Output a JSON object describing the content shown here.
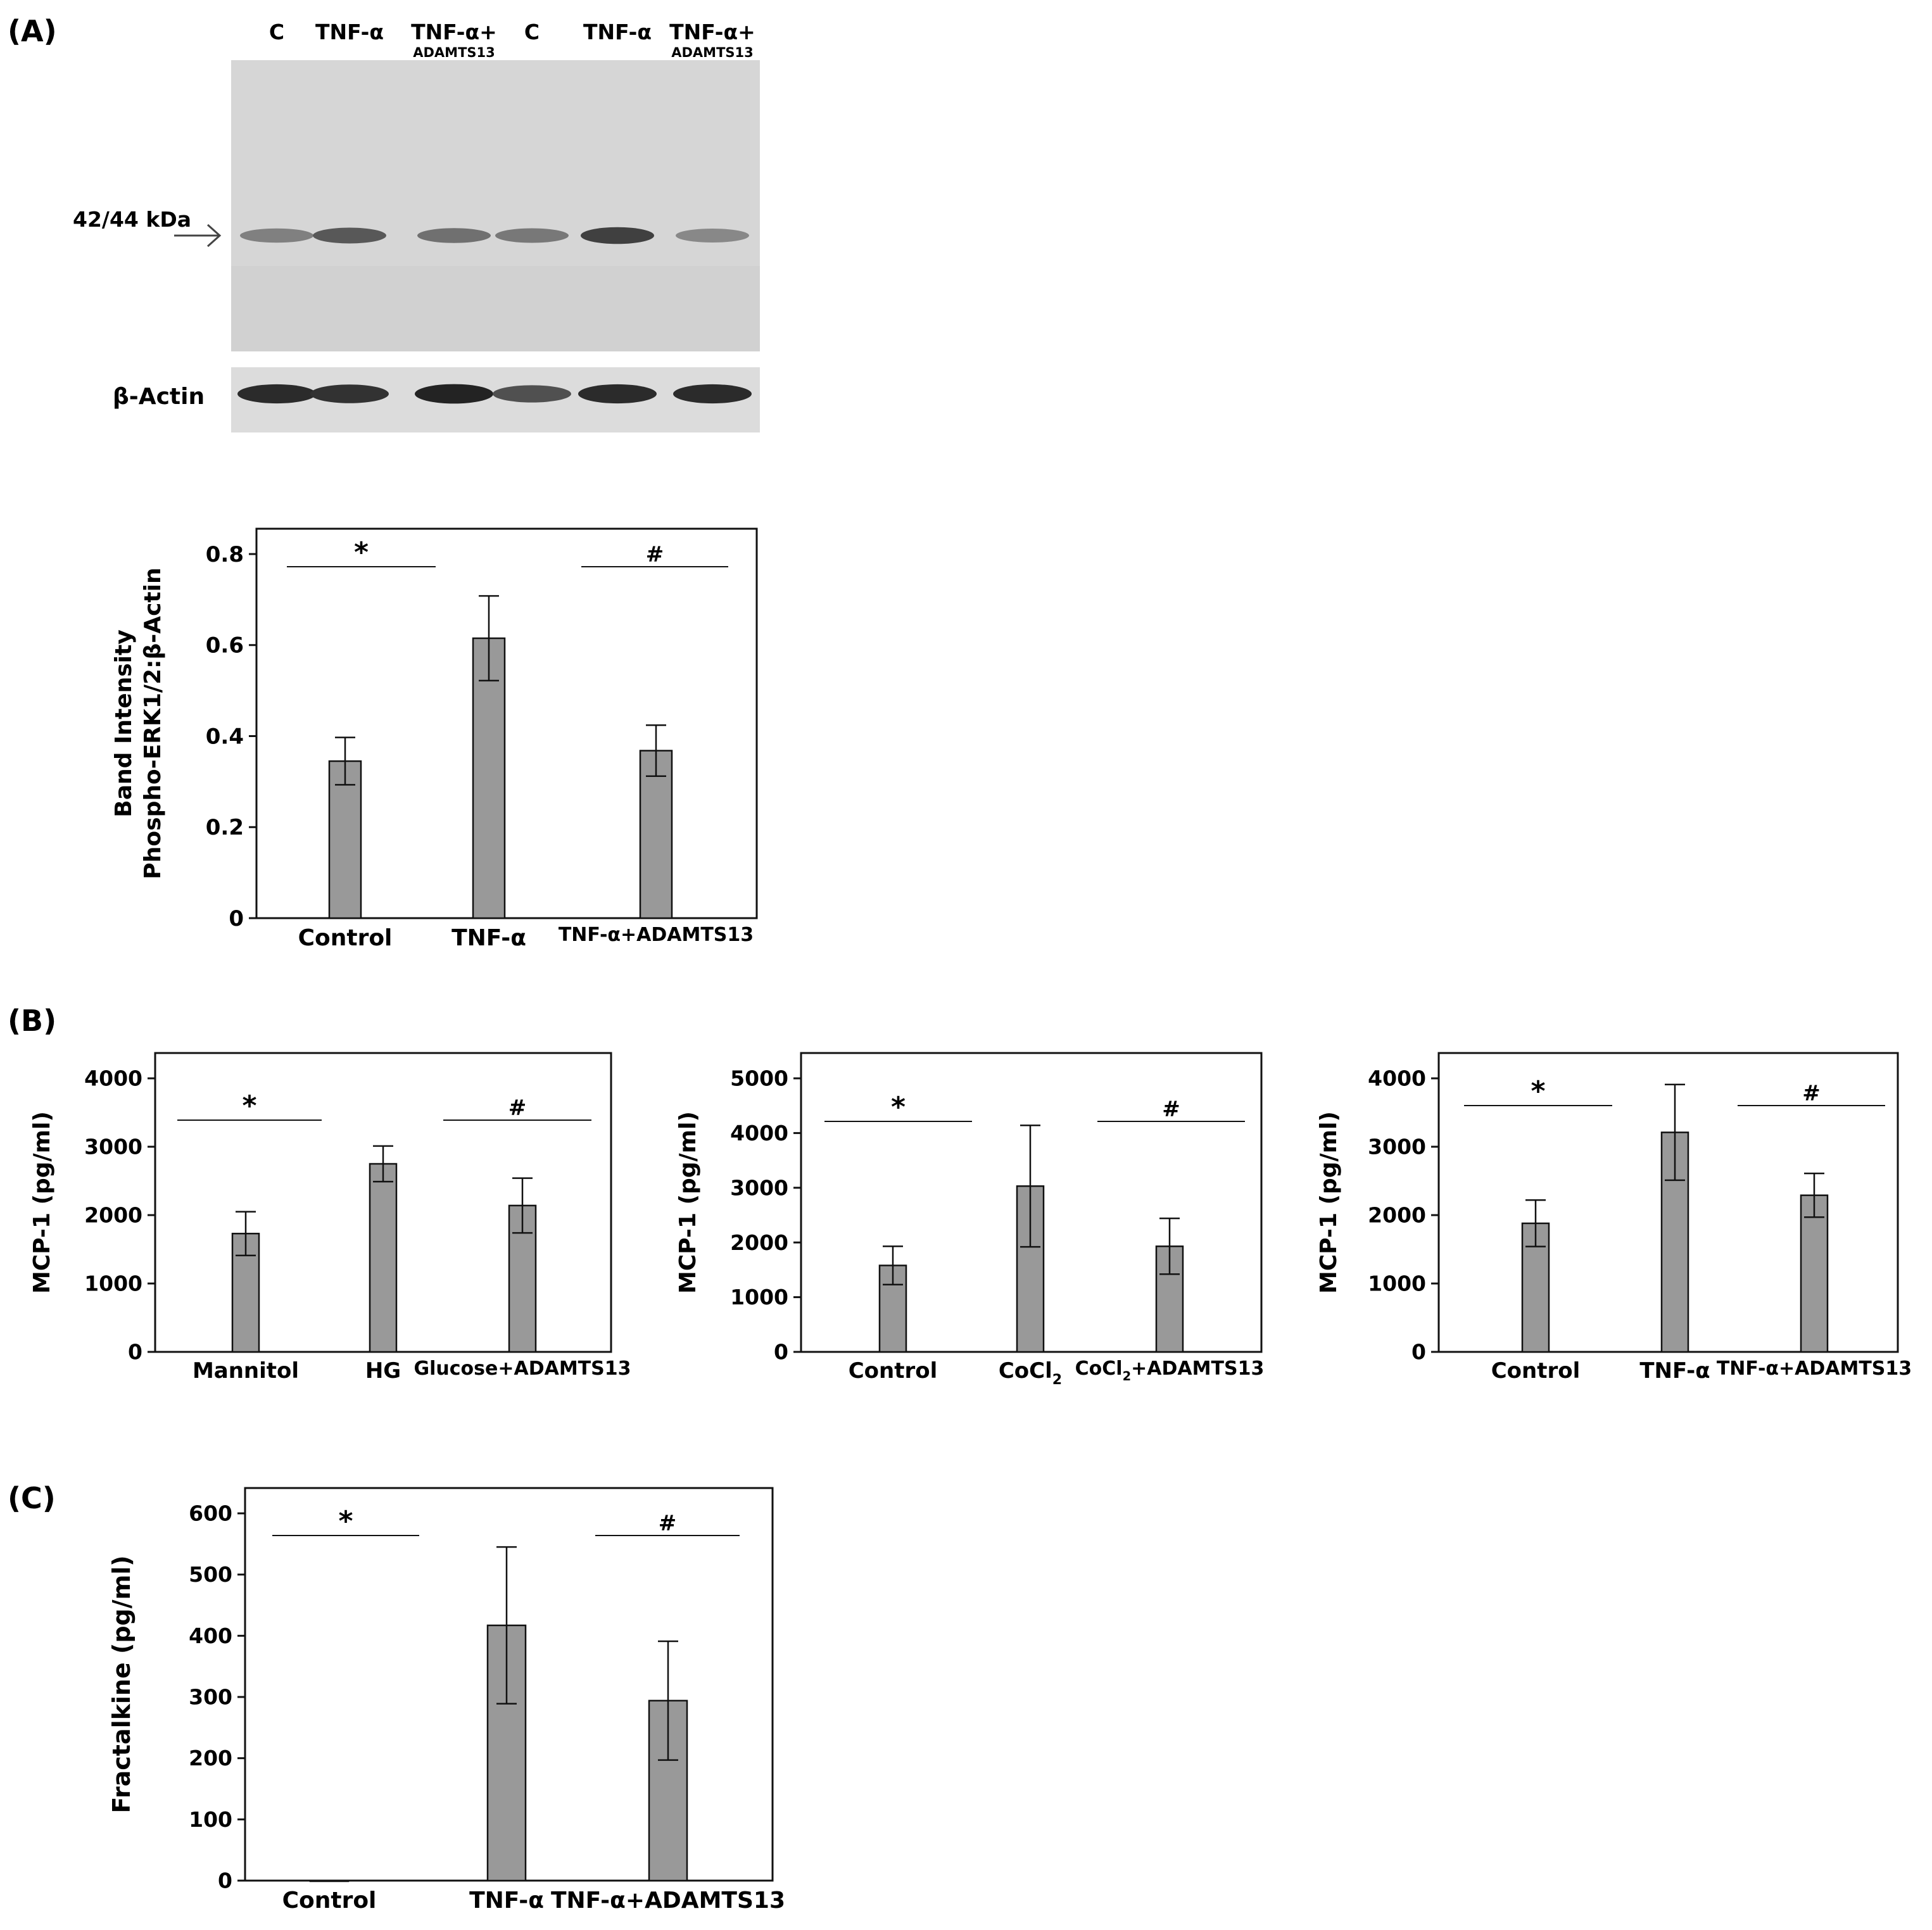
{
  "panel_labels": {
    "a": "(A)",
    "b": "(B)",
    "c": "(C)"
  },
  "blot": {
    "lane_labels": [
      "C",
      "TNF-α",
      "TNF-α+",
      "C",
      "TNF-α",
      "TNF-α+"
    ],
    "lane_sublabels": [
      "",
      "",
      "ADAMTS13",
      "",
      "",
      "ADAMTS13"
    ],
    "marker_label": "42/44 kDa",
    "actin_label": "β-Actin",
    "band_intensity": [
      0.45,
      0.7,
      0.55,
      0.5,
      0.85,
      0.4
    ],
    "actin_intensity": [
      0.85,
      0.8,
      0.9,
      0.6,
      0.85,
      0.85
    ]
  },
  "chart_data": [
    {
      "id": "A",
      "type": "bar",
      "categories": [
        "Control",
        "TNF-α",
        "TNF-α+ADAMTS13"
      ],
      "values": [
        0.345,
        0.615,
        0.368
      ],
      "errors": [
        0.052,
        0.093,
        0.056
      ],
      "ylabel_lines": [
        "Band Intensity",
        "Phospho-ERK1/2:β-Actin"
      ],
      "ylim": [
        0,
        0.8
      ],
      "yticks": [
        0,
        0.2,
        0.4,
        0.6,
        0.8
      ],
      "ytick_labels": [
        "0",
        "0.2",
        "0.4",
        "0.6",
        "0.8"
      ],
      "significance": [
        {
          "symbol": "*",
          "from": 0,
          "to": 1
        },
        {
          "symbol": "#",
          "from": 1,
          "to": 2
        }
      ],
      "bar_color": "#999999"
    },
    {
      "id": "B1",
      "type": "bar",
      "categories": [
        "Mannitol",
        "HG",
        "Glucose+ADAMTS13"
      ],
      "values": [
        1730,
        2750,
        2140
      ],
      "errors": [
        320,
        260,
        400
      ],
      "ylabel_lines": [
        "MCP-1 (pg/ml)"
      ],
      "ylim": [
        0,
        4000
      ],
      "yticks": [
        0,
        1000,
        2000,
        3000,
        4000
      ],
      "ytick_labels": [
        "0",
        "1000",
        "2000",
        "3000",
        "4000"
      ],
      "significance": [
        {
          "symbol": "*",
          "from": 0,
          "to": 1
        },
        {
          "symbol": "#",
          "from": 1,
          "to": 2
        }
      ],
      "bar_color": "#999999"
    },
    {
      "id": "B2",
      "type": "bar",
      "categories": [
        "Control",
        "CoCl2",
        "CoCl2+ADAMTS13"
      ],
      "values": [
        1580,
        3030,
        1930
      ],
      "errors": [
        350,
        1110,
        510
      ],
      "ylabel_lines": [
        "MCP-1 (pg/ml)"
      ],
      "ylim": [
        0,
        5000
      ],
      "yticks": [
        0,
        1000,
        2000,
        3000,
        4000,
        5000
      ],
      "ytick_labels": [
        "0",
        "1000",
        "2000",
        "3000",
        "4000",
        "5000"
      ],
      "significance": [
        {
          "symbol": "*",
          "from": 0,
          "to": 1
        },
        {
          "symbol": "#",
          "from": 1,
          "to": 2
        }
      ],
      "bar_color": "#999999"
    },
    {
      "id": "B3",
      "type": "bar",
      "categories": [
        "Control",
        "TNF-α",
        "TNF-α+ADAMTS13"
      ],
      "values": [
        1880,
        3210,
        2290
      ],
      "errors": [
        340,
        700,
        320
      ],
      "ylabel_lines": [
        "MCP-1 (pg/ml)"
      ],
      "ylim": [
        0,
        4000
      ],
      "yticks": [
        0,
        1000,
        2000,
        3000,
        4000
      ],
      "ytick_labels": [
        "0",
        "1000",
        "2000",
        "3000",
        "4000"
      ],
      "significance": [
        {
          "symbol": "*",
          "from": 0,
          "to": 1
        },
        {
          "symbol": "#",
          "from": 1,
          "to": 2
        }
      ],
      "bar_color": "#999999"
    },
    {
      "id": "C",
      "type": "bar",
      "categories": [
        "Control",
        "TNF-α",
        "TNF-α+ADAMTS13"
      ],
      "values": [
        0,
        417,
        294
      ],
      "errors": [
        0,
        128,
        97
      ],
      "ylabel_lines": [
        "Fractalkine (pg/ml)"
      ],
      "ylim": [
        0,
        600
      ],
      "yticks": [
        0,
        100,
        200,
        300,
        400,
        500,
        600
      ],
      "ytick_labels": [
        "0",
        "100",
        "200",
        "300",
        "400",
        "500",
        "600"
      ],
      "significance": [
        {
          "symbol": "*",
          "from": 0,
          "to": 1
        },
        {
          "symbol": "#",
          "from": 1,
          "to": 2
        }
      ],
      "bar_color": "#999999"
    }
  ]
}
